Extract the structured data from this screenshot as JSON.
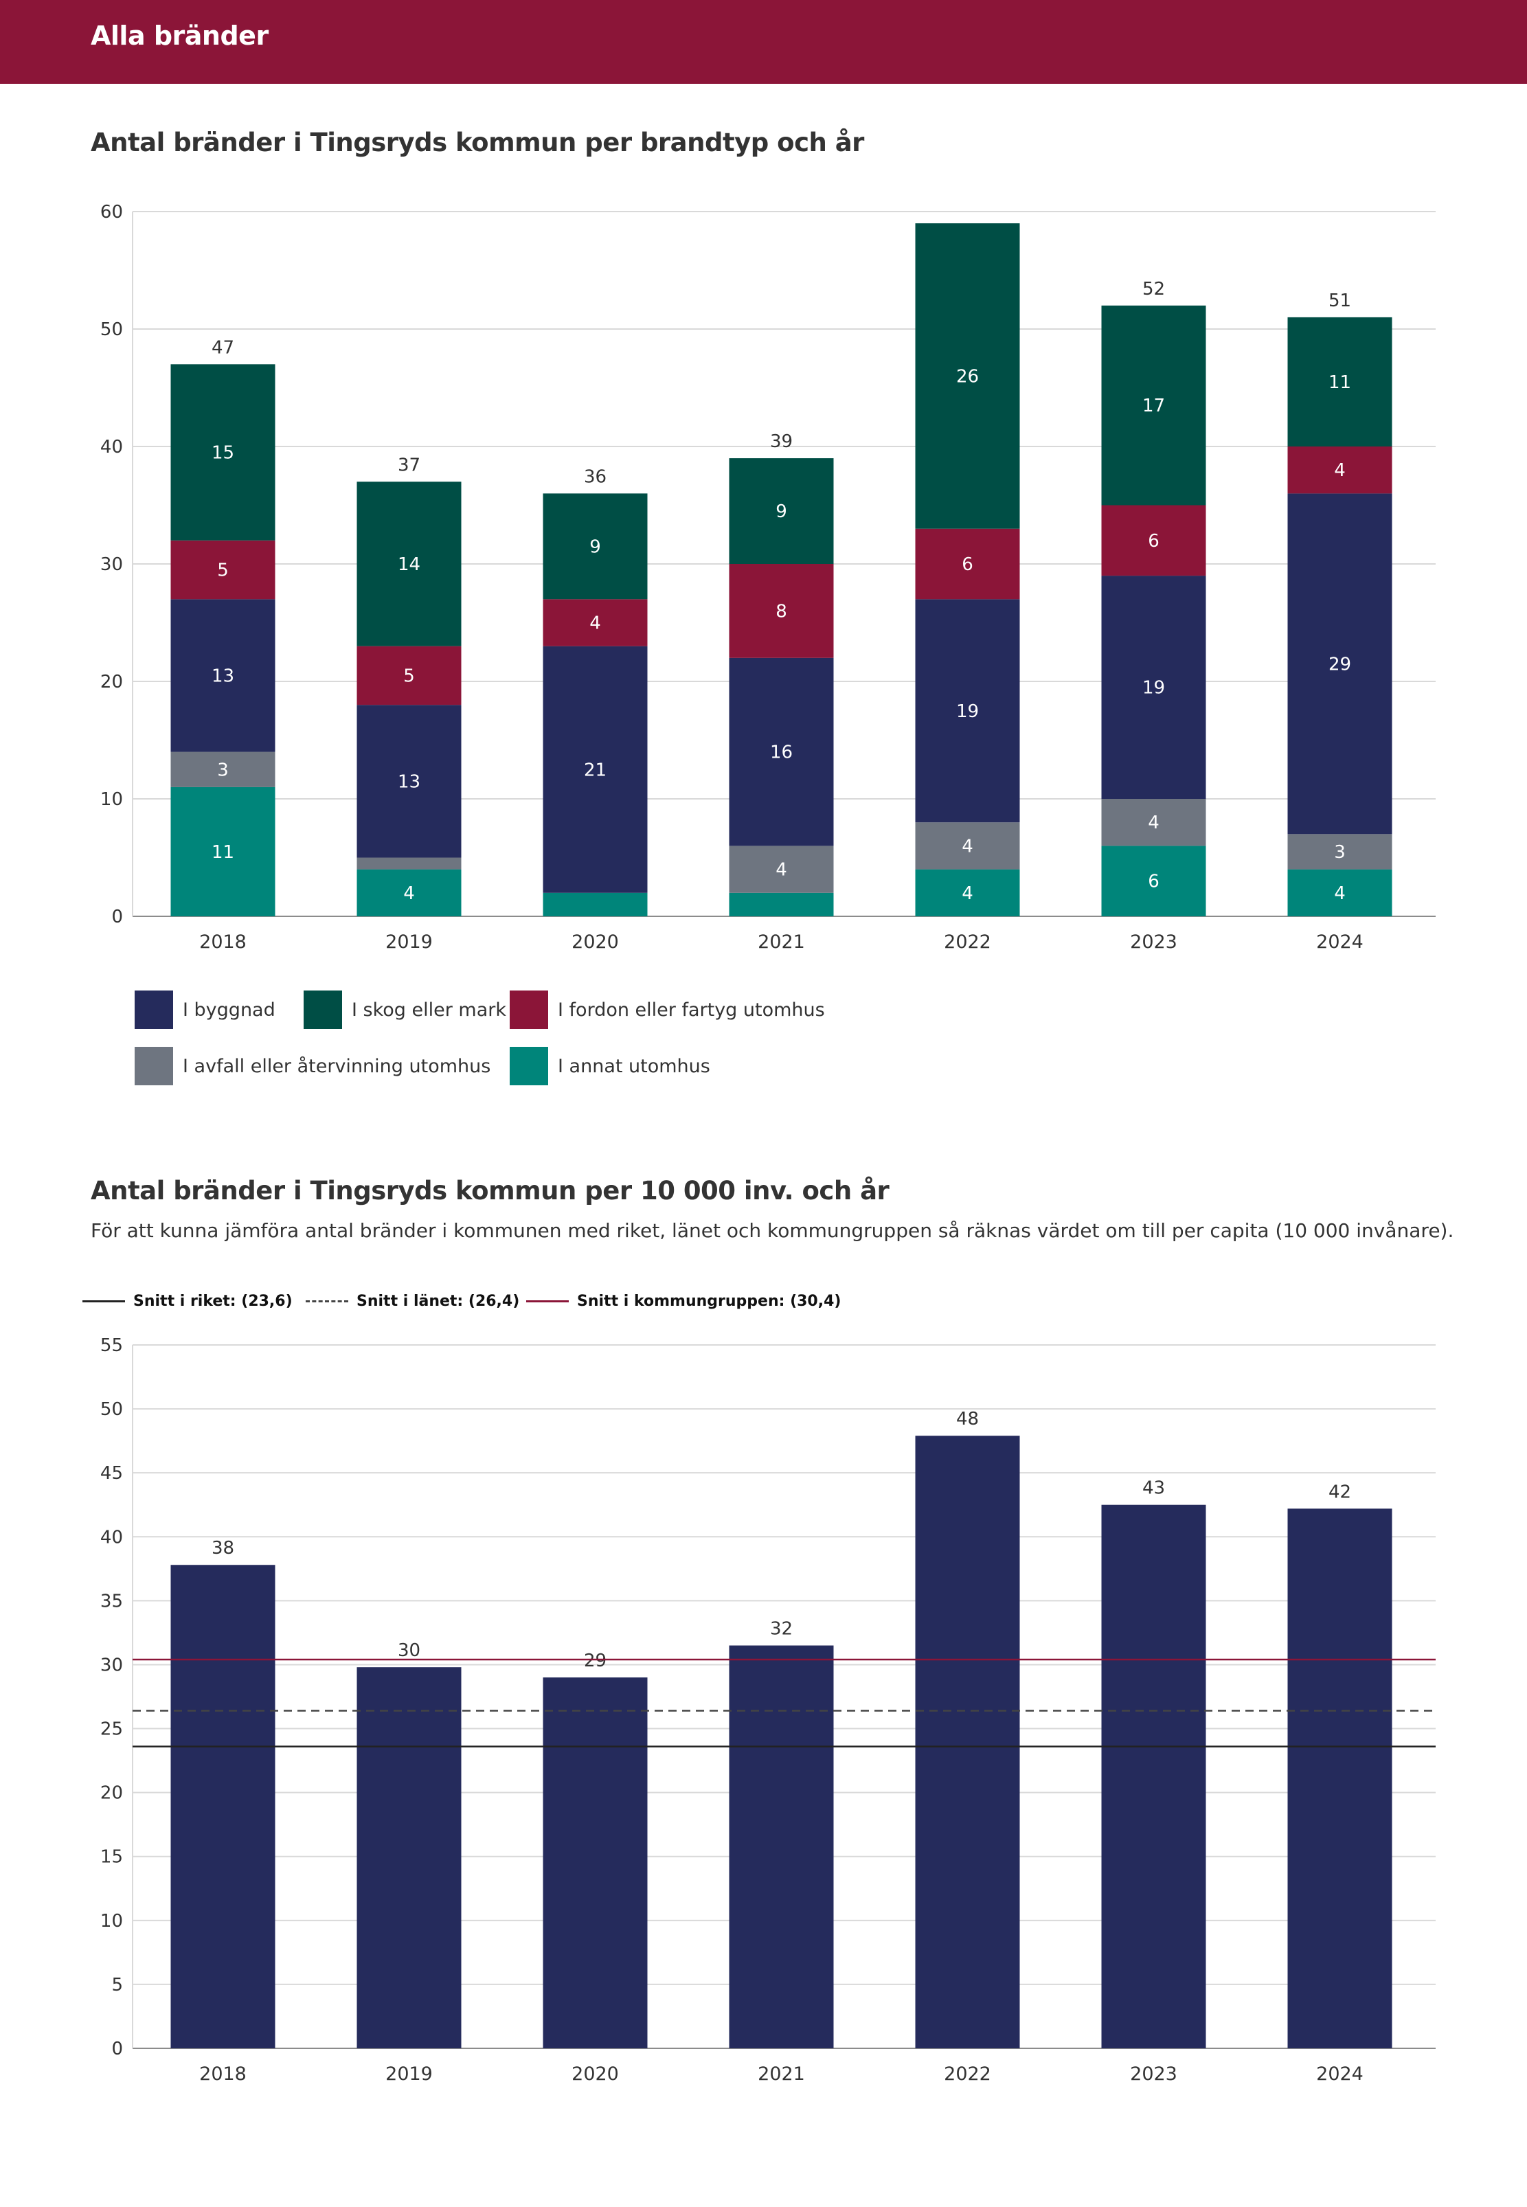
{
  "page": {
    "banner_title": "Alla bränder",
    "chart1_heading": "Antal bränder i Tingsryds kommun per brandtyp och år",
    "chart2_heading": "Antal bränder i Tingsryds kommun per 10 000 inv. och år",
    "chart2_subtitle": "För att kunna jämföra antal bränder i kommunen med riket, länet och kommungruppen så räknas värdet om till per capita (10 000 invånare)."
  },
  "colors": {
    "banner": "#8b1538",
    "byggnad": "#252b5c",
    "skog": "#004e45",
    "fordon": "#8b1538",
    "avfall": "#6e7580",
    "annat": "#00857a",
    "bar": "#252b5c",
    "grid": "#d9d9d9",
    "axis": "#8c8c8c"
  },
  "chart_data": [
    {
      "type": "bar",
      "stacked": true,
      "title": "Antal bränder i Tingsryds kommun per brandtyp och år",
      "categories": [
        "2018",
        "2019",
        "2020",
        "2021",
        "2022",
        "2023",
        "2024"
      ],
      "series": [
        {
          "key": "annat",
          "name": "I annat utomhus",
          "values": [
            11,
            4,
            2,
            2,
            4,
            6,
            4
          ],
          "labels": [
            "11",
            "4",
            "",
            "",
            "4",
            "6",
            "4"
          ]
        },
        {
          "key": "avfall",
          "name": "I avfall eller återvinning utomhus",
          "values": [
            3,
            1,
            0,
            4,
            4,
            4,
            3
          ],
          "labels": [
            "3",
            "",
            "",
            "4",
            "4",
            "4",
            "3"
          ]
        },
        {
          "key": "byggnad",
          "name": "I byggnad",
          "values": [
            13,
            13,
            21,
            16,
            19,
            19,
            29
          ],
          "labels": [
            "13",
            "13",
            "21",
            "16",
            "19",
            "19",
            "29"
          ]
        },
        {
          "key": "fordon",
          "name": "I fordon eller fartyg utomhus",
          "values": [
            5,
            5,
            4,
            8,
            6,
            6,
            4
          ],
          "labels": [
            "5",
            "5",
            "4",
            "8",
            "6",
            "6",
            "4"
          ]
        },
        {
          "key": "skog",
          "name": "I skog eller mark",
          "values": [
            15,
            14,
            9,
            9,
            26,
            17,
            11
          ],
          "labels": [
            "15",
            "14",
            "9",
            "9",
            "26",
            "17",
            "11"
          ]
        }
      ],
      "totals": [
        47,
        37,
        36,
        39,
        59,
        52,
        51
      ],
      "total_labels": [
        "47",
        "37",
        "36",
        "39",
        "",
        "52",
        "51"
      ],
      "ylim": [
        0,
        60
      ],
      "yticks": [
        0,
        10,
        20,
        30,
        40,
        50,
        60
      ],
      "xlabel": "",
      "ylabel": "",
      "legend": [
        {
          "key": "byggnad",
          "label": "I byggnad"
        },
        {
          "key": "skog",
          "label": "I skog eller mark"
        },
        {
          "key": "fordon",
          "label": "I fordon eller fartyg utomhus"
        },
        {
          "key": "avfall",
          "label": "I avfall eller återvinning utomhus"
        },
        {
          "key": "annat",
          "label": "I annat utomhus"
        }
      ],
      "legend_position": "bottom-left",
      "grid": true
    },
    {
      "type": "bar",
      "title": "Antal bränder i Tingsryds kommun per 10 000 inv. och år",
      "categories": [
        "2018",
        "2019",
        "2020",
        "2021",
        "2022",
        "2023",
        "2024"
      ],
      "values": [
        37.8,
        29.8,
        29.0,
        31.5,
        47.9,
        42.5,
        42.2
      ],
      "value_labels": [
        "38",
        "30",
        "29",
        "32",
        "48",
        "43",
        "42"
      ],
      "ylim": [
        0,
        55
      ],
      "yticks": [
        0,
        5,
        10,
        15,
        20,
        25,
        30,
        35,
        40,
        45,
        50,
        55
      ],
      "xlabel": "",
      "ylabel": "",
      "reference_lines": [
        {
          "key": "riket",
          "label": "Snitt i riket: (23,6)",
          "value": 23.6,
          "style": "solid",
          "color": "#222222"
        },
        {
          "key": "lanet",
          "label": "Snitt i länet: (26,4)",
          "value": 26.4,
          "style": "dashed",
          "color": "#444444"
        },
        {
          "key": "kommungruppen",
          "label": "Snitt i kommungruppen: (30,4)",
          "value": 30.4,
          "style": "solid",
          "color": "#8b1538"
        }
      ],
      "legend_position": "top-left",
      "grid": true
    }
  ]
}
